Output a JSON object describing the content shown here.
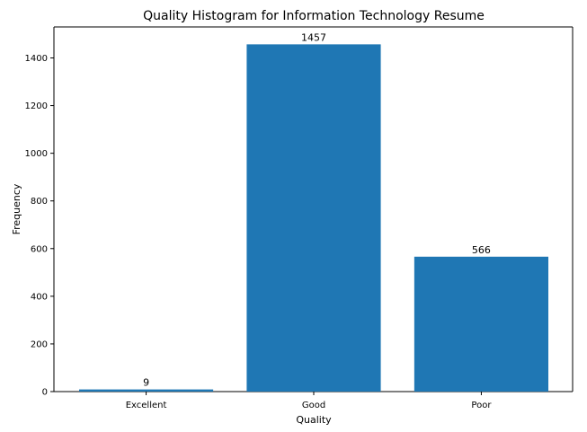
{
  "chart_data": {
    "type": "bar",
    "title": "Quality Histogram for Information Technology Resume",
    "xlabel": "Quality",
    "ylabel": "Frequency",
    "categories": [
      "Excellent",
      "Good",
      "Poor"
    ],
    "values": [
      9,
      1457,
      566
    ],
    "data_labels": [
      "9",
      "1457",
      "566"
    ],
    "ylim": [
      0,
      1530
    ],
    "yticks": [
      0,
      200,
      400,
      600,
      800,
      1000,
      1200,
      1400
    ],
    "ytick_labels": [
      "0",
      "200",
      "400",
      "600",
      "800",
      "1000",
      "1200",
      "1400"
    ],
    "bar_color": "#1f77b4",
    "grid": false,
    "legend": "none"
  }
}
